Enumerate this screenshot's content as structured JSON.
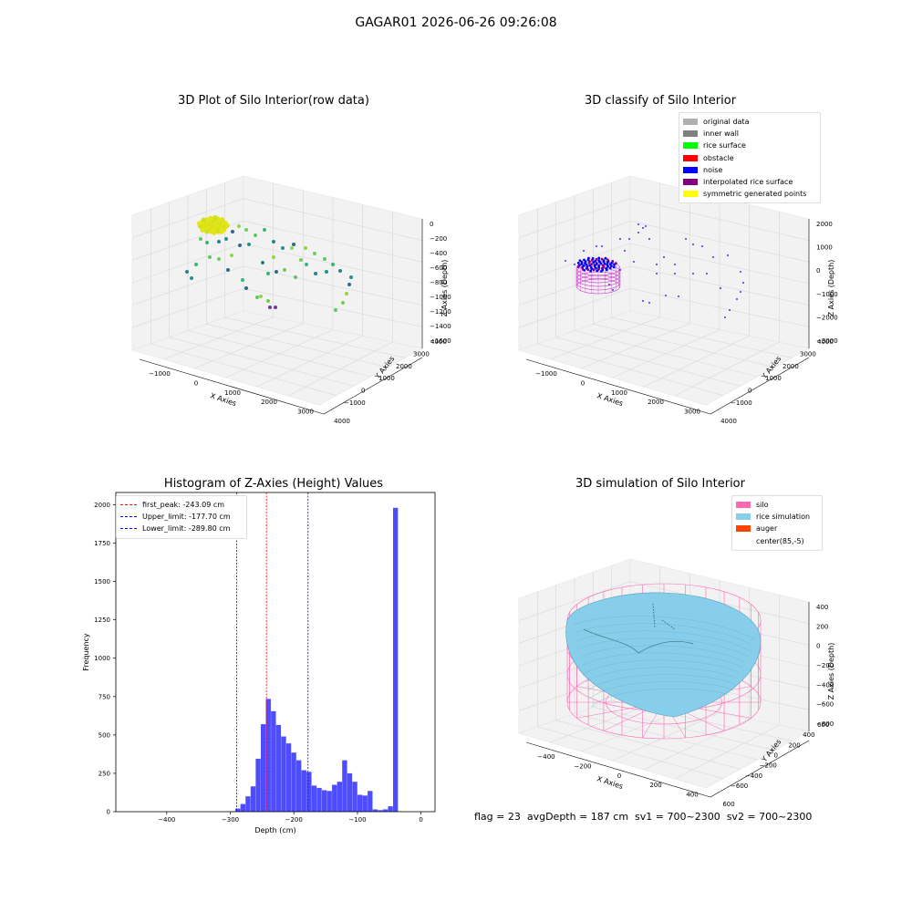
{
  "suptitle": "GAGAR01 2026-06-26 09:26:08",
  "footer": "flag = 23  avgDepth = 187 cm  sv1 = 700~2300  sv2 = 700~2300",
  "chart_data": [
    {
      "type": "scatter",
      "title": "3D Plot of Silo Interior(row data)",
      "xlabel": "X Axies",
      "ylabel": "Y Axies",
      "zlabel": "Z Axies (Depth)",
      "xticks": [
        "−1000",
        "0",
        "1000",
        "2000",
        "3000",
        "4000"
      ],
      "yticks": [
        "−1000",
        "0",
        "1000",
        "2000",
        "3000",
        "4000"
      ],
      "zticks": [
        "0",
        "−200",
        "−400",
        "−600",
        "−800",
        "−1000",
        "−1200",
        "−1400",
        "−1600"
      ],
      "colormap": "viridis"
    },
    {
      "type": "scatter",
      "title": "3D classify of Silo Interior",
      "xlabel": "X Axies",
      "ylabel": "Y Axies",
      "zlabel": "Z Axies (Depth)",
      "xticks": [
        "−1000",
        "0",
        "1000",
        "2000",
        "3000",
        "4000"
      ],
      "yticks": [
        "−1000",
        "0",
        "1000",
        "2000",
        "3000",
        "4000"
      ],
      "zticks": [
        "2000",
        "1000",
        "0",
        "−1000",
        "−2000",
        "−3000"
      ],
      "legend": [
        {
          "name": "original data",
          "color": "#b0b0b0"
        },
        {
          "name": "inner wall",
          "color": "#808080"
        },
        {
          "name": "rice surface",
          "color": "#00ff00"
        },
        {
          "name": "obstacle",
          "color": "#ff0000"
        },
        {
          "name": "noise",
          "color": "#0000ff"
        },
        {
          "name": "interpolated rice surface",
          "color": "#800080"
        },
        {
          "name": "symmetric generated points",
          "color": "#ffff00"
        }
      ],
      "legend_position": "top-right"
    },
    {
      "type": "bar",
      "title": "Histogram of Z-Axies (Height) Values",
      "xlabel": "Depth (cm)",
      "ylabel": "Frequency",
      "xlim": [
        -480,
        22
      ],
      "ylim": [
        0,
        2080
      ],
      "xticks": [
        -400,
        -300,
        -200,
        -100,
        0
      ],
      "yticks": [
        0,
        250,
        500,
        750,
        1000,
        1250,
        1500,
        1750,
        2000
      ],
      "bin_width": 8,
      "bars": [
        {
          "x": -300,
          "v": 3
        },
        {
          "x": -292,
          "v": 20
        },
        {
          "x": -284,
          "v": 50
        },
        {
          "x": -276,
          "v": 100
        },
        {
          "x": -268,
          "v": 165
        },
        {
          "x": -260,
          "v": 345
        },
        {
          "x": -252,
          "v": 570
        },
        {
          "x": -244,
          "v": 735
        },
        {
          "x": -236,
          "v": 655
        },
        {
          "x": -228,
          "v": 565
        },
        {
          "x": -220,
          "v": 490
        },
        {
          "x": -212,
          "v": 445
        },
        {
          "x": -204,
          "v": 385
        },
        {
          "x": -196,
          "v": 335
        },
        {
          "x": -188,
          "v": 270
        },
        {
          "x": -180,
          "v": 260
        },
        {
          "x": -172,
          "v": 170
        },
        {
          "x": -164,
          "v": 155
        },
        {
          "x": -156,
          "v": 140
        },
        {
          "x": -148,
          "v": 135
        },
        {
          "x": -140,
          "v": 175
        },
        {
          "x": -132,
          "v": 195
        },
        {
          "x": -124,
          "v": 335
        },
        {
          "x": -116,
          "v": 250
        },
        {
          "x": -108,
          "v": 195
        },
        {
          "x": -100,
          "v": 110
        },
        {
          "x": -92,
          "v": 105
        },
        {
          "x": -84,
          "v": 135
        },
        {
          "x": -76,
          "v": 15
        },
        {
          "x": -68,
          "v": 10
        },
        {
          "x": -60,
          "v": 15
        },
        {
          "x": -52,
          "v": 35
        },
        {
          "x": -44,
          "v": 1980
        }
      ],
      "bar_color": "#4d4dff",
      "lines": [
        {
          "name": "first_peak: -243.09 cm",
          "x": -243.09,
          "color": "#ff0000"
        },
        {
          "name": "Upper_limit: -177.70 cm",
          "x": -177.7,
          "color": "#0000ff"
        },
        {
          "name": "Lower_limit: -289.80 cm",
          "x": -289.8,
          "color": "#0000ff"
        }
      ],
      "legend_position": "top-left"
    },
    {
      "type": "surface",
      "title": "3D simulation of Silo Interior",
      "xlabel": "X Axies",
      "ylabel": "Y Axies",
      "zlabel": "Z Axies (Depth)",
      "xticks": [
        "−400",
        "−200",
        "0",
        "200",
        "400",
        "600"
      ],
      "yticks": [
        "−600",
        "−400",
        "−200",
        "0",
        "200",
        "400",
        "600"
      ],
      "zticks": [
        "400",
        "200",
        "0",
        "−200",
        "−400",
        "−600",
        "−800"
      ],
      "legend": [
        {
          "name": "silo",
          "color": "#ff69b4"
        },
        {
          "name": "rice simulation",
          "color": "#87ceeb"
        },
        {
          "name": "auger",
          "color": "#ff4500"
        },
        {
          "name": "center(85,-5)",
          "color": "#ffffff"
        }
      ],
      "legend_position": "top-right"
    }
  ]
}
